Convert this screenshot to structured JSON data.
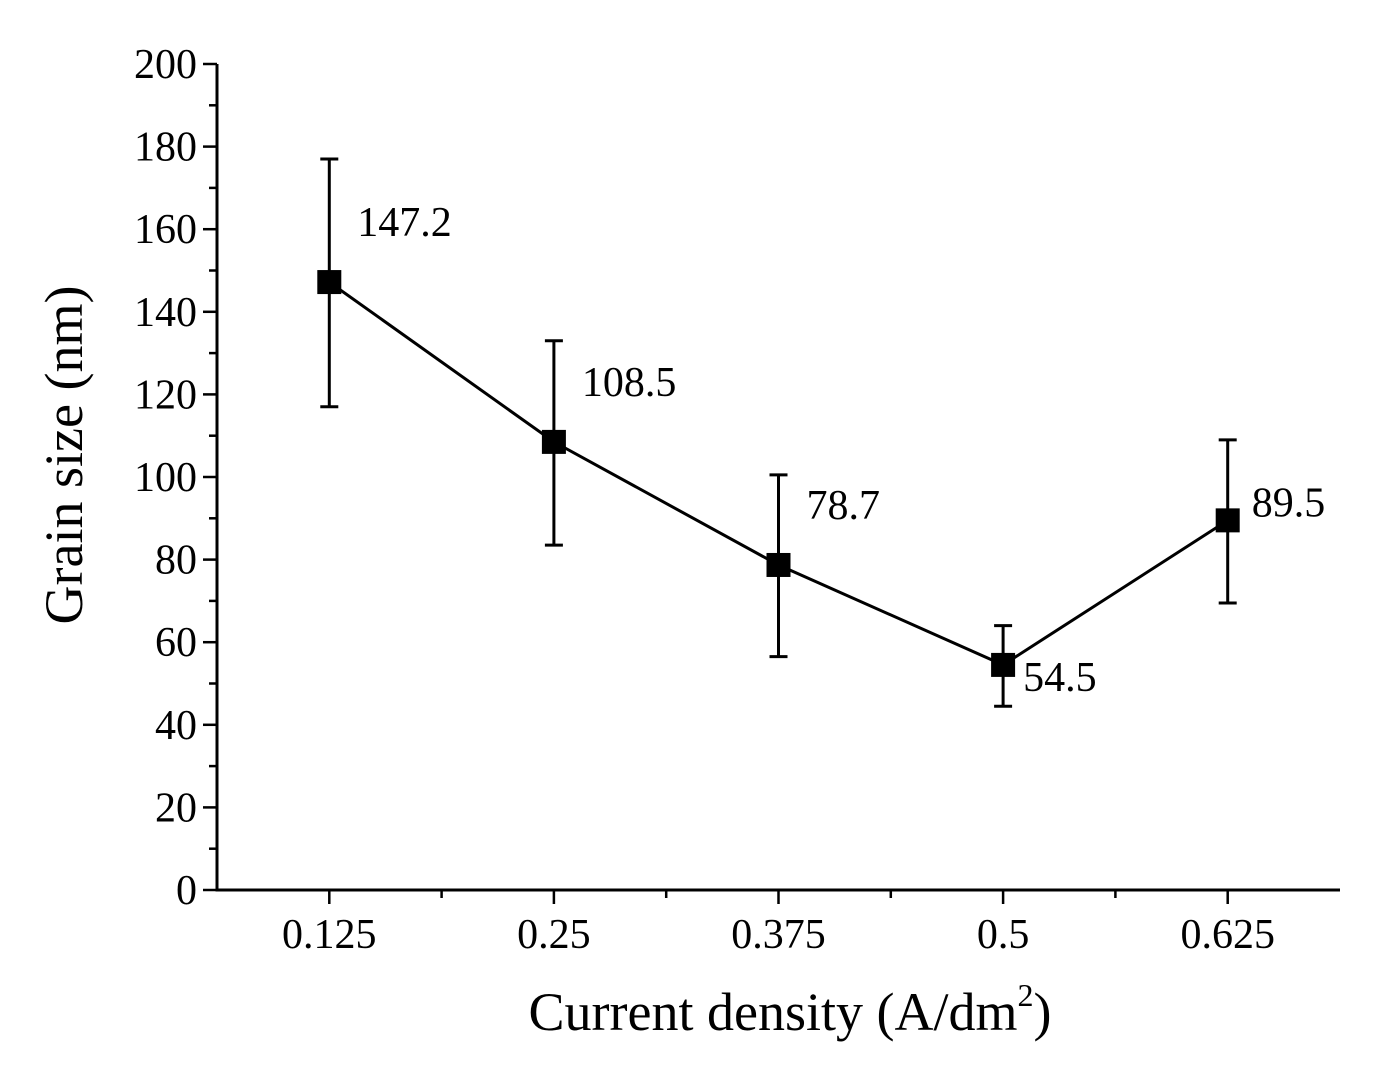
{
  "chart_data": {
    "type": "line",
    "title": "",
    "xlabel": "Current density (A/dm",
    "xlabel_sup": "2",
    "xlabel_close": ")",
    "ylabel": "Grain size (nm)",
    "categories": [
      "0.125",
      "0.25",
      "0.375",
      "0.5",
      "0.625"
    ],
    "xlim": [
      0.0625,
      0.6875
    ],
    "ylim": [
      0,
      200
    ],
    "yticks": [
      0,
      20,
      40,
      60,
      80,
      100,
      120,
      140,
      160,
      180,
      200
    ],
    "grid": false,
    "series": [
      {
        "name": "Grain size",
        "x": [
          0.125,
          0.25,
          0.375,
          0.5,
          0.625
        ],
        "values": [
          147.2,
          108.5,
          78.7,
          54.5,
          89.5
        ],
        "error_upper": [
          177,
          133,
          100.5,
          64,
          109
        ],
        "error_lower": [
          117,
          83.5,
          56.5,
          44.5,
          69.5
        ],
        "data_labels": [
          "147.2",
          "108.5",
          "78.7",
          "54.5",
          "89.5"
        ]
      }
    ]
  }
}
